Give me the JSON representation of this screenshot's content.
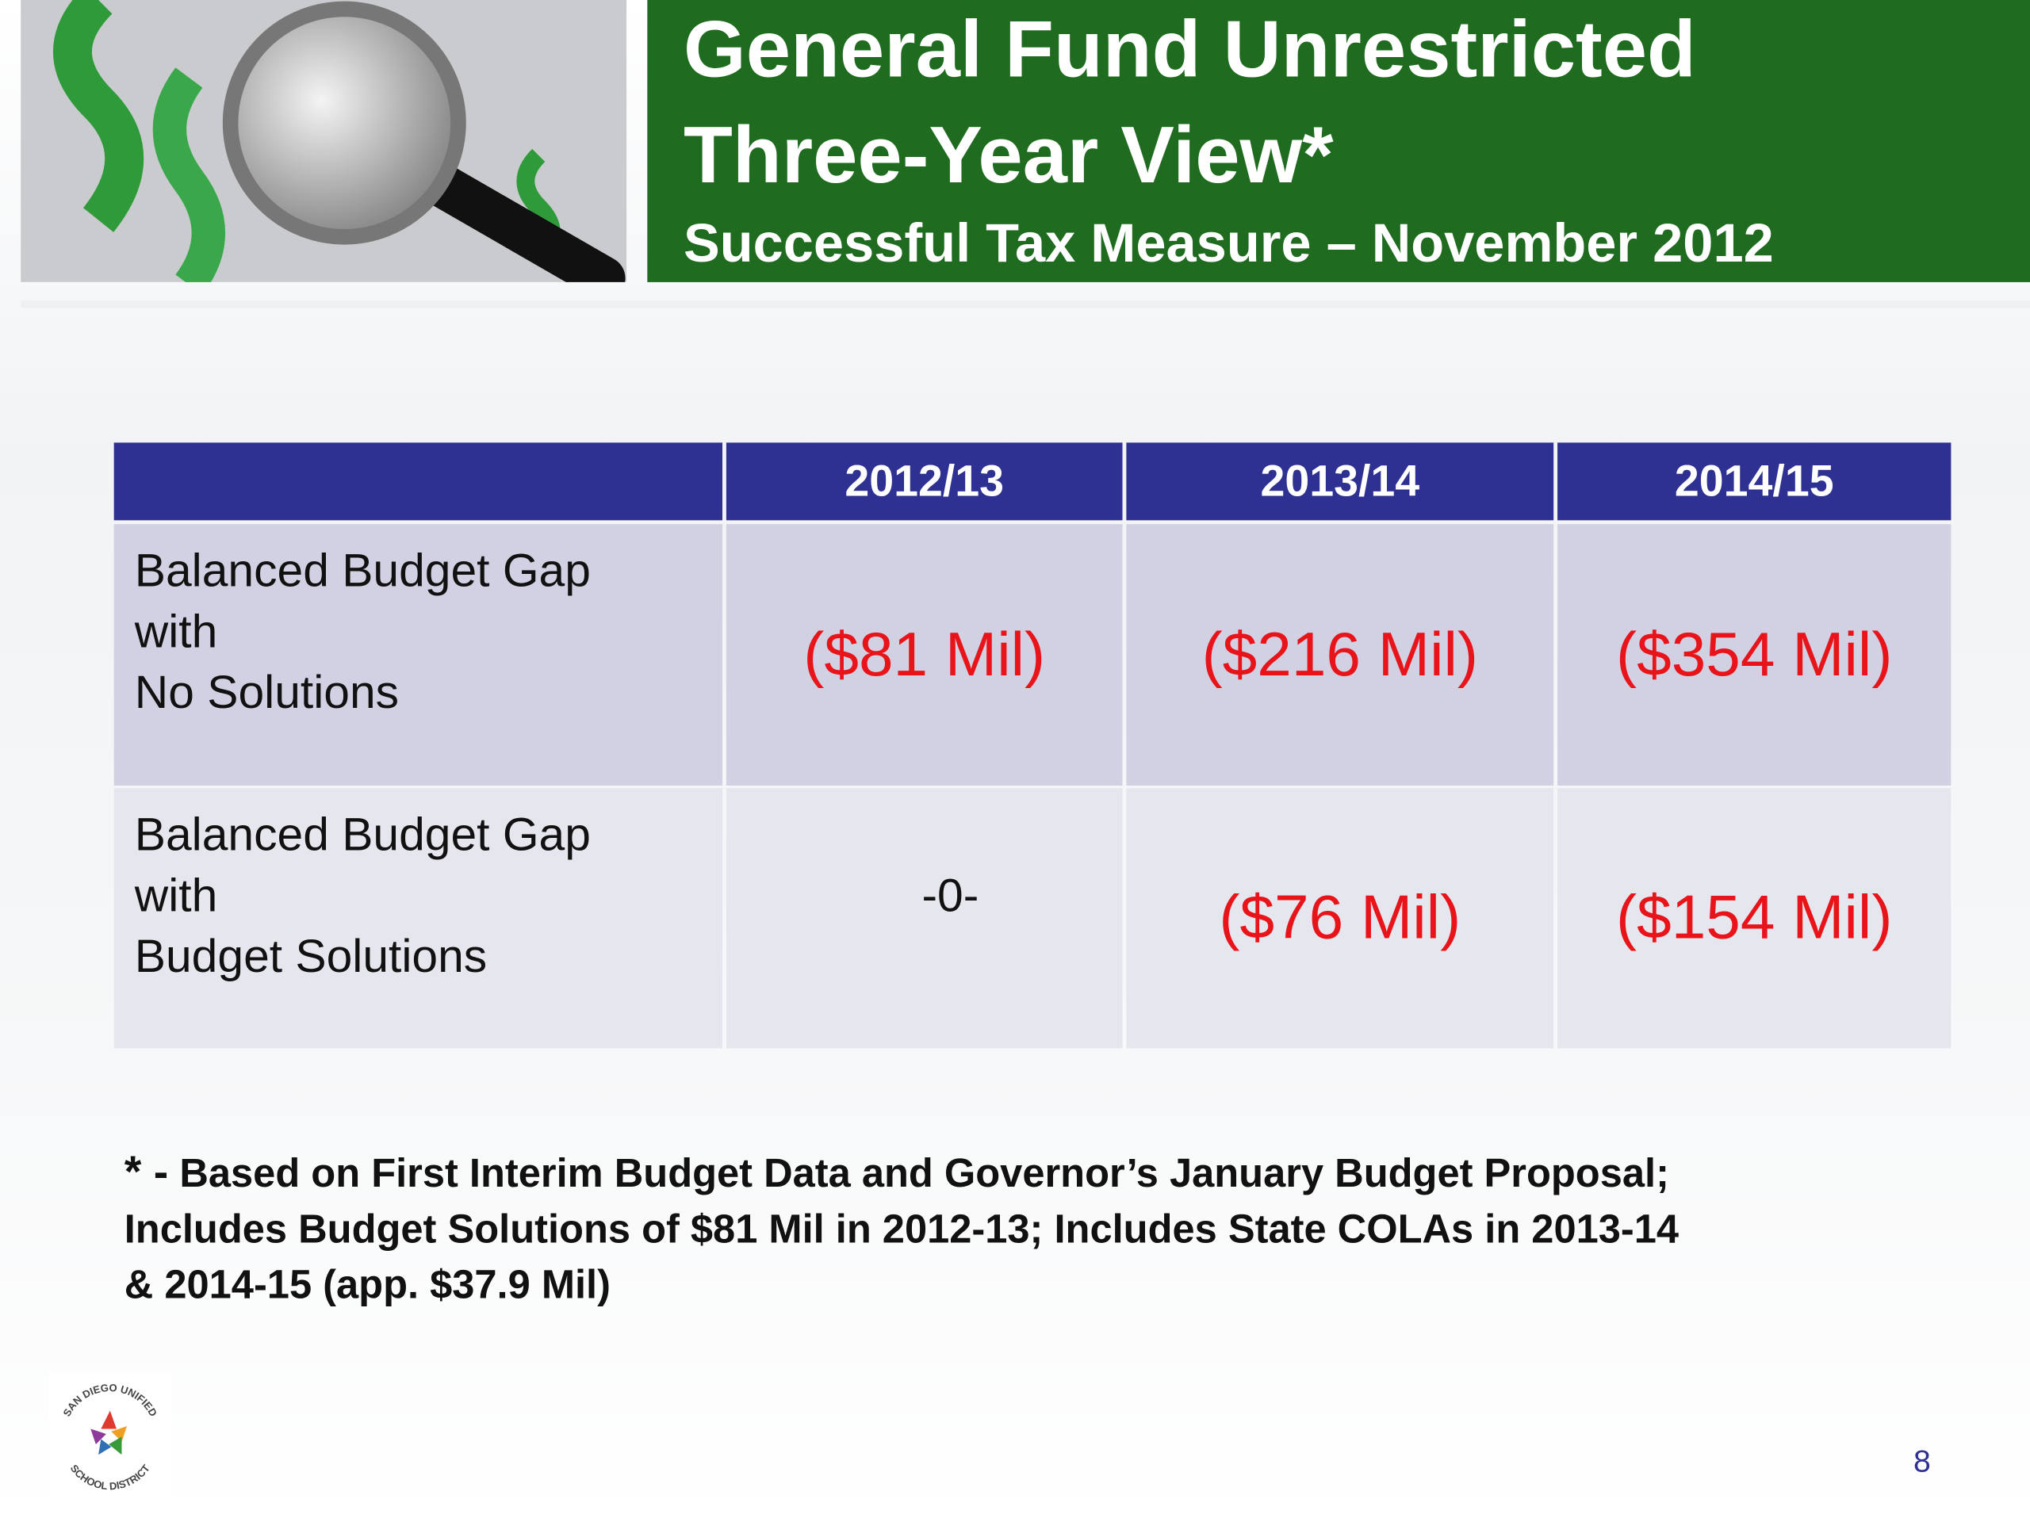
{
  "header": {
    "title_lines": [
      "General Fund Unrestricted",
      "Three-Year View*"
    ],
    "subtitle": "Successful Tax Measure – November 2012"
  },
  "table": {
    "columns": [
      "",
      "2012/13",
      "2013/14",
      "2014/15"
    ],
    "rows": [
      [
        "Balanced Budget Gap\nwith\nNo Solutions",
        "($81 Mil)",
        "($216 Mil)",
        "($354 Mil)"
      ],
      [
        "Balanced Budget Gap\nwith\nBudget Solutions",
        "-0-",
        "($76 Mil)",
        "($154 Mil)"
      ]
    ]
  },
  "footnote": {
    "star": "* -",
    "lines": [
      "Based on First Interim Budget Data and Governor’s January Budget Proposal;",
      "Includes Budget Solutions of $81 Mil in 2012-13; Includes State COLAs in 2013-14",
      "& 2014-15  (app. $37.9 Mil)"
    ]
  },
  "logo": {
    "top": "SAN DIEGO UNIFIED",
    "bottom": "SCHOOL DISTRICT"
  },
  "page_number": "8"
}
